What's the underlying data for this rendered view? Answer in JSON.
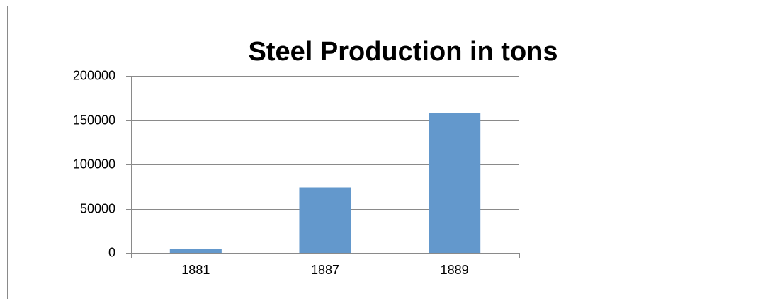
{
  "chart_data": {
    "type": "bar",
    "title": "Steel Production in tons",
    "categories": [
      "1881",
      "1887",
      "1889"
    ],
    "values": [
      4000,
      74000,
      158000
    ],
    "color": "#6398cc",
    "ylim": [
      0,
      200000
    ],
    "yticks": [
      0,
      50000,
      100000,
      150000,
      200000
    ],
    "grid": true
  }
}
